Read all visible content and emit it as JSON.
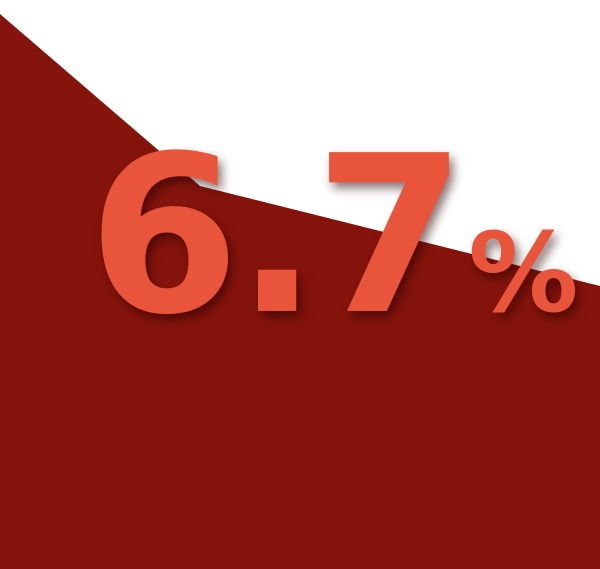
{
  "stat": {
    "value": "6.7",
    "unit": "%"
  },
  "colors": {
    "background": "#ffffff",
    "panel": "#85140c",
    "figure": "#e8553a"
  }
}
